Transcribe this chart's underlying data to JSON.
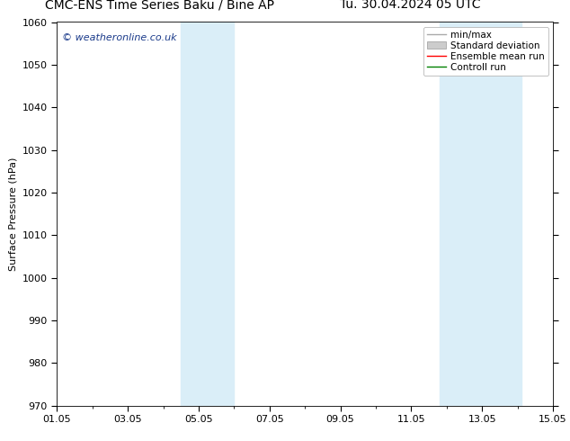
{
  "title_left": "CMC-ENS Time Series Baku / Bine AP",
  "title_right": "Tu. 30.04.2024 05 UTC",
  "ylabel": "Surface Pressure (hPa)",
  "ylim": [
    970,
    1060
  ],
  "yticks": [
    970,
    980,
    990,
    1000,
    1010,
    1020,
    1030,
    1040,
    1050,
    1060
  ],
  "xtick_labels": [
    "01.05",
    "03.05",
    "05.05",
    "07.05",
    "09.05",
    "11.05",
    "13.05",
    "15.05"
  ],
  "xtick_positions": [
    0,
    2,
    4,
    6,
    8,
    10,
    12,
    14
  ],
  "xlim": [
    0,
    14
  ],
  "shaded_regions": [
    {
      "x_start": 3.5,
      "x_end": 5.0,
      "color": "#daeef8"
    },
    {
      "x_start": 10.8,
      "x_end": 13.1,
      "color": "#daeef8"
    }
  ],
  "watermark_text": "© weatheronline.co.uk",
  "watermark_color": "#1a3a8a",
  "legend_items": [
    {
      "label": "min/max",
      "color": "#aaaaaa",
      "lw": 1.0,
      "style": "line"
    },
    {
      "label": "Standard deviation",
      "color": "#cccccc",
      "lw": 6,
      "style": "rect"
    },
    {
      "label": "Ensemble mean run",
      "color": "red",
      "lw": 1.0,
      "style": "line"
    },
    {
      "label": "Controll run",
      "color": "green",
      "lw": 1.0,
      "style": "line"
    }
  ],
  "background_color": "#ffffff",
  "plot_bg_color": "#ffffff",
  "title_fontsize": 10,
  "tick_fontsize": 8,
  "ylabel_fontsize": 8,
  "legend_fontsize": 7.5,
  "watermark_fontsize": 8
}
